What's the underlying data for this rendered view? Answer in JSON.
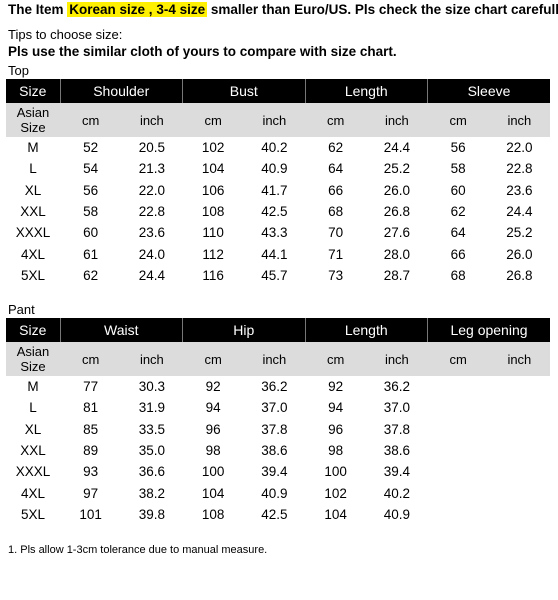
{
  "header": {
    "prefix": "The Item",
    "highlight": "Korean size , 3-4 size",
    "suffix": "smaller than Euro/US. Pls check the size chart carefully",
    "highlight_color": "#ffef00"
  },
  "tips": "Tips to choose size:",
  "pls_line": "Pls use the similar cloth of yours to compare with size chart.",
  "top": {
    "label": "Top",
    "columns": [
      "Size",
      "Shoulder",
      "Bust",
      "Length",
      "Sleeve"
    ],
    "sub": [
      "Asian\nSize",
      "cm",
      "inch",
      "cm",
      "inch",
      "cm",
      "inch",
      "cm",
      "inch"
    ],
    "rows": [
      [
        "M",
        "52",
        "20.5",
        "102",
        "40.2",
        "62",
        "24.4",
        "56",
        "22.0"
      ],
      [
        "L",
        "54",
        "21.3",
        "104",
        "40.9",
        "64",
        "25.2",
        "58",
        "22.8"
      ],
      [
        "XL",
        "56",
        "22.0",
        "106",
        "41.7",
        "66",
        "26.0",
        "60",
        "23.6"
      ],
      [
        "XXL",
        "58",
        "22.8",
        "108",
        "42.5",
        "68",
        "26.8",
        "62",
        "24.4"
      ],
      [
        "XXXL",
        "60",
        "23.6",
        "110",
        "43.3",
        "70",
        "27.6",
        "64",
        "25.2"
      ],
      [
        "4XL",
        "61",
        "24.0",
        "112",
        "44.1",
        "71",
        "28.0",
        "66",
        "26.0"
      ],
      [
        "5XL",
        "62",
        "24.4",
        "116",
        "45.7",
        "73",
        "28.7",
        "68",
        "26.8"
      ]
    ]
  },
  "pant": {
    "label": "Pant",
    "columns": [
      "Size",
      "Waist",
      "Hip",
      "Length",
      "Leg opening"
    ],
    "sub": [
      "Asian\nSize",
      "cm",
      "inch",
      "cm",
      "inch",
      "cm",
      "inch",
      "cm",
      "inch"
    ],
    "rows": [
      [
        "M",
        "77",
        "30.3",
        "92",
        "36.2",
        "92",
        "36.2",
        "",
        ""
      ],
      [
        "L",
        "81",
        "31.9",
        "94",
        "37.0",
        "94",
        "37.0",
        "",
        ""
      ],
      [
        "XL",
        "85",
        "33.5",
        "96",
        "37.8",
        "96",
        "37.8",
        "",
        ""
      ],
      [
        "XXL",
        "89",
        "35.0",
        "98",
        "38.6",
        "98",
        "38.6",
        "",
        ""
      ],
      [
        "XXXL",
        "93",
        "36.6",
        "100",
        "39.4",
        "100",
        "39.4",
        "",
        ""
      ],
      [
        "4XL",
        "97",
        "38.2",
        "104",
        "40.9",
        "102",
        "40.2",
        "",
        ""
      ],
      [
        "5XL",
        "101",
        "39.8",
        "108",
        "42.5",
        "104",
        "40.9",
        "",
        ""
      ]
    ]
  },
  "note": "1. Pls allow 1-3cm tolerance due to manual measure."
}
